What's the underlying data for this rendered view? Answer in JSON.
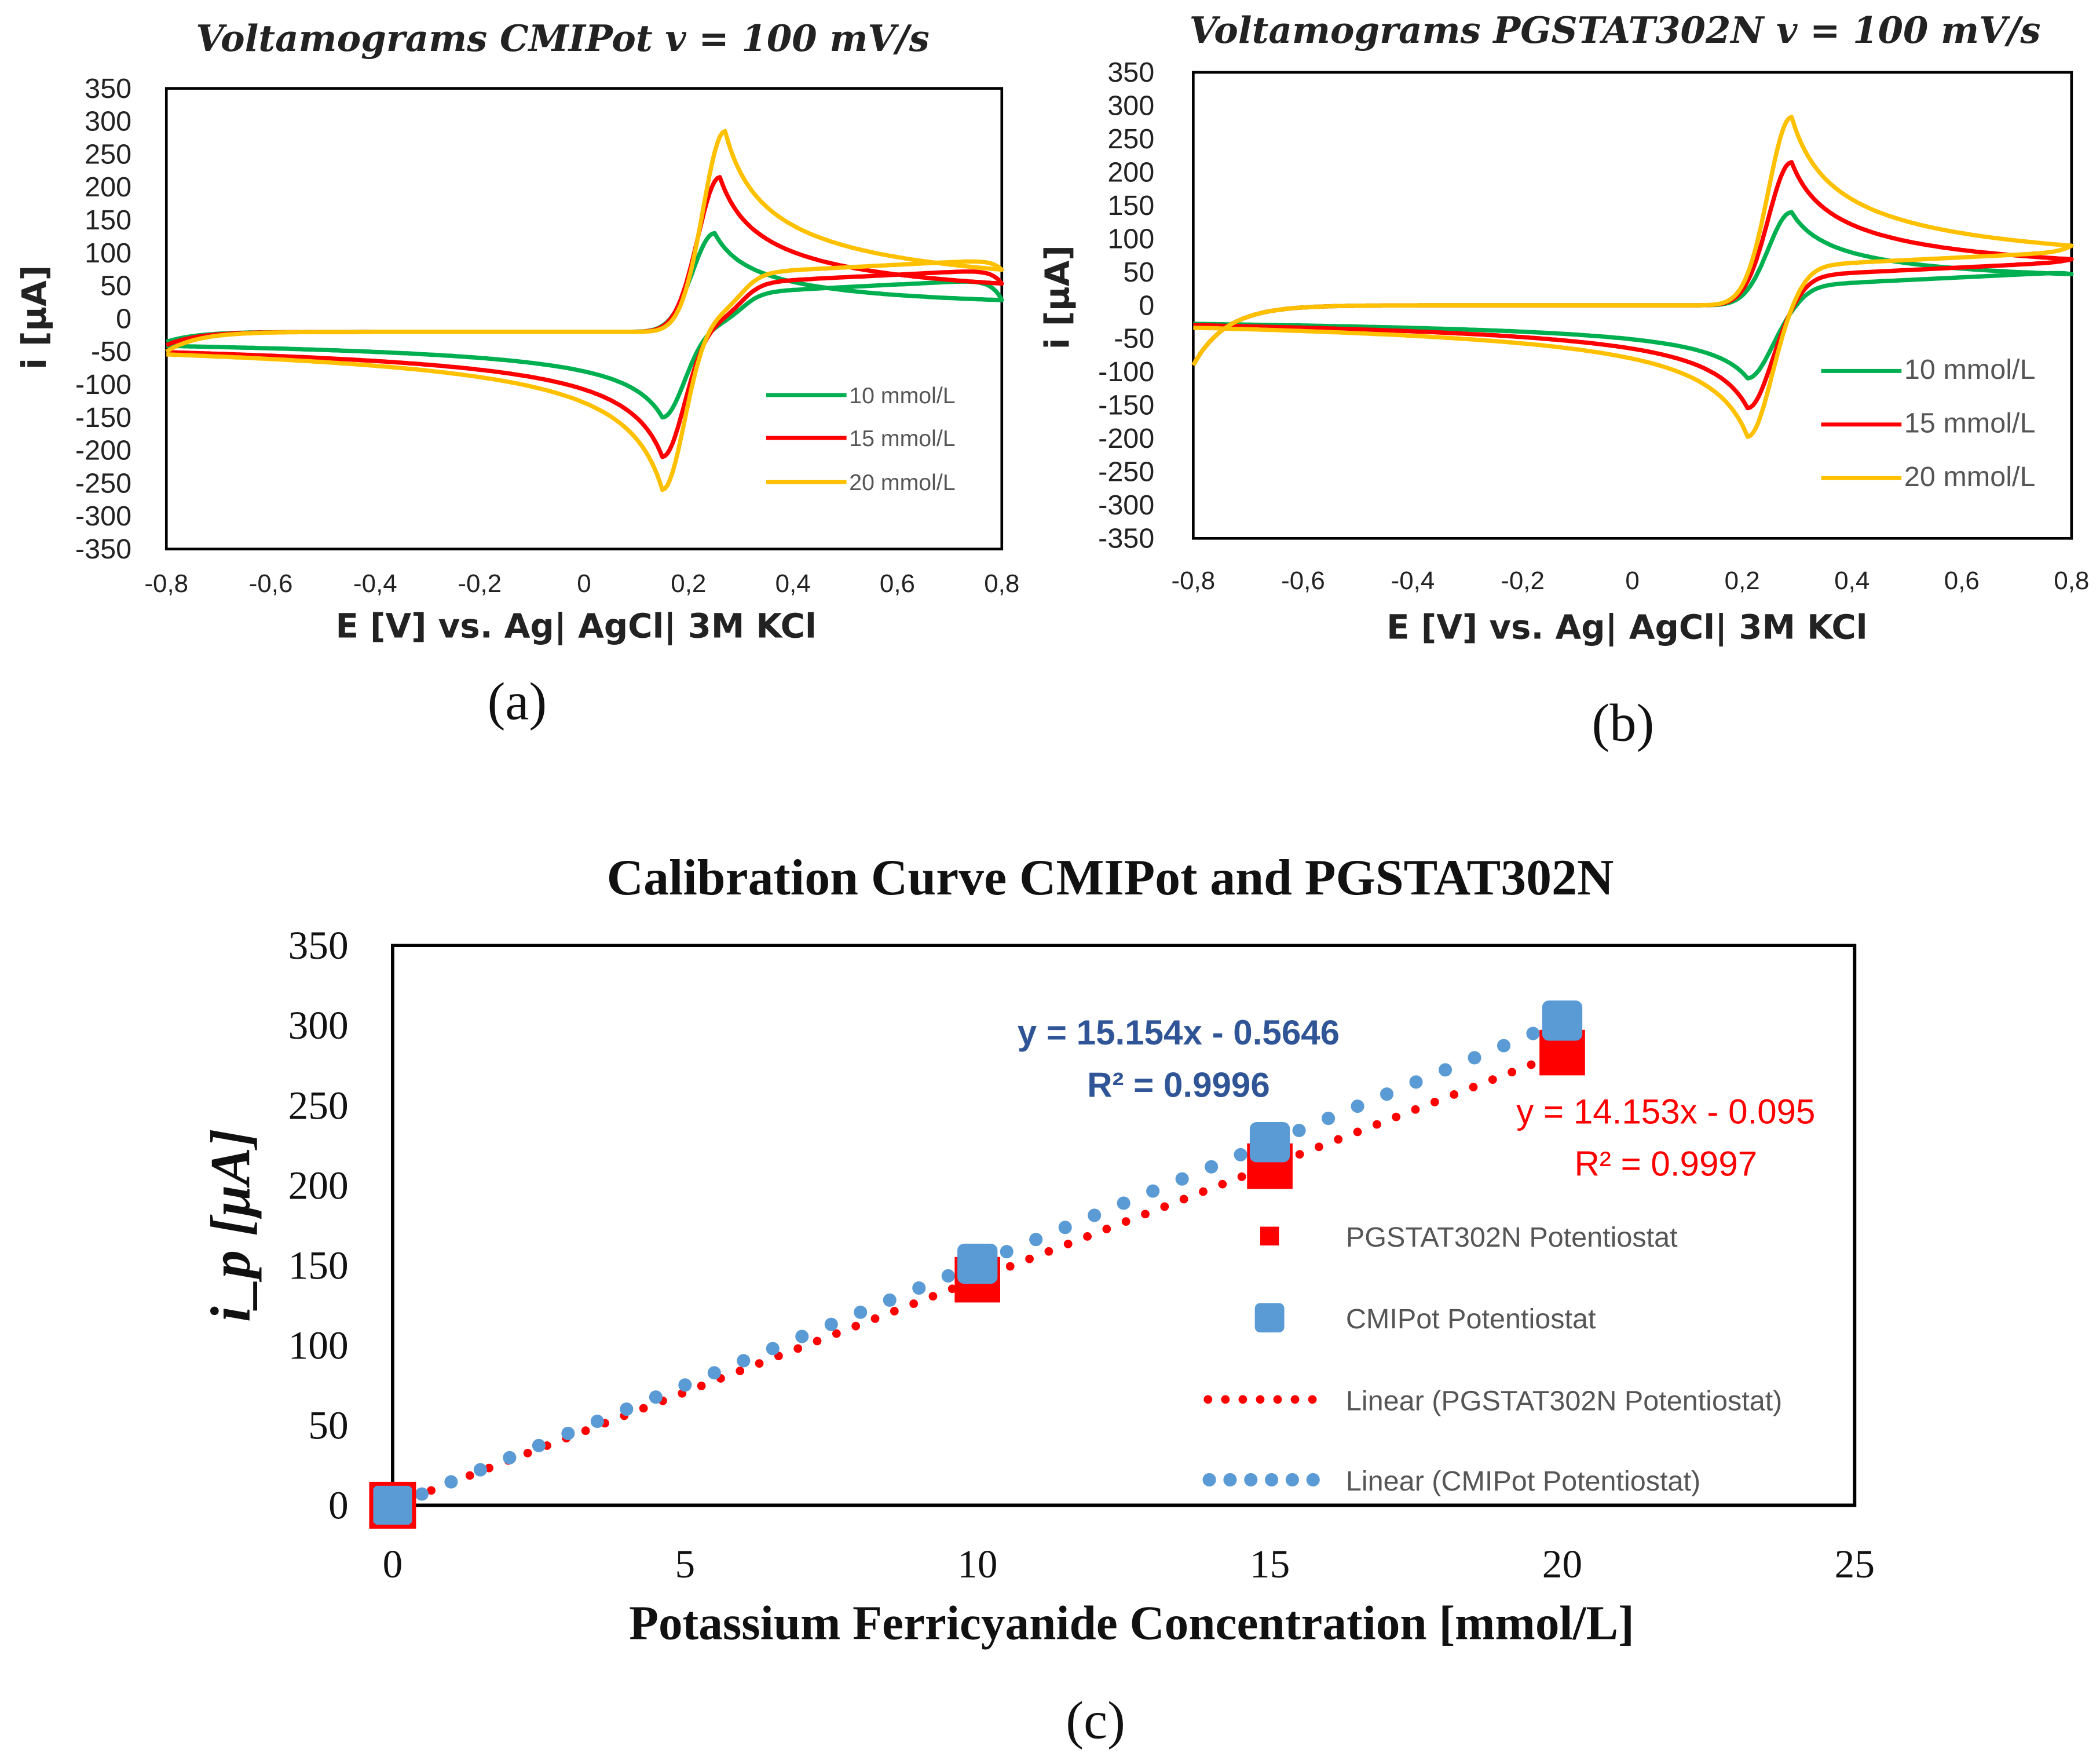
{
  "chart_data": [
    {
      "type": "line",
      "panel": "(a)",
      "title": "Voltamograms CMIPot v = 100 mV/s",
      "xlabel": "E [V] vs. Ag| AgCl| 3M KCl",
      "ylabel": "i [µA]",
      "xlim": [
        -0.8,
        0.8
      ],
      "ylim": [
        -350,
        350
      ],
      "xticks": [
        "-0,8",
        "-0,6",
        "-0,4",
        "-0,2",
        "0",
        "0,2",
        "0,4",
        "0,6",
        "0,8"
      ],
      "yticks": [
        "350",
        "300",
        "250",
        "200",
        "150",
        "100",
        "50",
        "0",
        "-50",
        "-100",
        "-150",
        "-200",
        "-250",
        "-300",
        "-350"
      ],
      "legend_position": "bottom-right",
      "series": [
        {
          "name": "10 mmol/L",
          "color": "#00b050",
          "anodic_peak": [
            0.25,
            150
          ],
          "cathodic_peak": [
            0.15,
            -140
          ],
          "forward_start": -35,
          "forward_baseline": -20,
          "reverse_baseline_high": 40,
          "reverse_baseline_low": -10
        },
        {
          "name": "15 mmol/L",
          "color": "#ff0000",
          "anodic_peak": [
            0.26,
            235
          ],
          "cathodic_peak": [
            0.15,
            -205
          ],
          "forward_start": -40,
          "forward_baseline": -20,
          "reverse_baseline_high": 55,
          "reverse_baseline_low": -5
        },
        {
          "name": "20 mmol/L",
          "color": "#ffc000",
          "anodic_peak": [
            0.27,
            305
          ],
          "cathodic_peak": [
            0.15,
            -265
          ],
          "forward_start": -50,
          "forward_baseline": -20,
          "reverse_baseline_high": 70,
          "reverse_baseline_low": 5
        }
      ]
    },
    {
      "type": "line",
      "panel": "(b)",
      "title": "Voltamograms PGSTAT302N v = 100 mV/s",
      "xlabel": "E [V] vs. Ag| AgCl| 3M KCl",
      "ylabel": "i [µA]",
      "xlim": [
        -0.8,
        0.8
      ],
      "ylim": [
        -350,
        350
      ],
      "xticks": [
        "-0,8",
        "-0,6",
        "-0,4",
        "-0,2",
        "0",
        "0,2",
        "0,4",
        "0,6",
        "0,8"
      ],
      "yticks": [
        "350",
        "300",
        "250",
        "200",
        "150",
        "100",
        "50",
        "0",
        "-50",
        "-100",
        "-150",
        "-200",
        "-250",
        "-300",
        "-350"
      ],
      "legend_position": "bottom-right",
      "series": [
        {
          "name": "10 mmol/L",
          "color": "#00b050",
          "anodic_peak": [
            0.29,
            140
          ],
          "cathodic_peak": [
            0.21,
            -105
          ],
          "forward_start": -90,
          "forward_baseline": 0,
          "reverse_baseline_high": 30,
          "reverse_baseline_low": -5
        },
        {
          "name": "15 mmol/L",
          "color": "#ff0000",
          "anodic_peak": [
            0.29,
            215
          ],
          "cathodic_peak": [
            0.21,
            -160
          ],
          "forward_start": -90,
          "forward_baseline": 0,
          "reverse_baseline_high": 45,
          "reverse_baseline_low": 5
        },
        {
          "name": "20 mmol/L",
          "color": "#ffc000",
          "anodic_peak": [
            0.29,
            283
          ],
          "cathodic_peak": [
            0.21,
            -210
          ],
          "forward_start": -90,
          "forward_baseline": 0,
          "reverse_baseline_high": 60,
          "reverse_baseline_low": 12
        }
      ]
    },
    {
      "type": "scatter",
      "panel": "(c)",
      "title": "Calibration Curve CMIPot and PGSTAT302N",
      "xlabel": "Potassium Ferricyanide Concentration [mmol/L]",
      "ylabel": "i_p [µA]",
      "xlim": [
        0,
        25
      ],
      "ylim": [
        0,
        350
      ],
      "xticks": [
        "0",
        "5",
        "10",
        "15",
        "20",
        "25"
      ],
      "yticks": [
        "350",
        "300",
        "250",
        "200",
        "150",
        "100",
        "50",
        "0"
      ],
      "legend_position": "right",
      "series": [
        {
          "name": "PGSTAT302N Potentiostat",
          "color": "#ff0000",
          "marker": "square",
          "x": [
            0,
            10,
            15,
            20
          ],
          "y": [
            0,
            141,
            212,
            283
          ]
        },
        {
          "name": "CMIPot Potentiostat",
          "color": "#5b9bd5",
          "marker": "rounded-square",
          "x": [
            0,
            10,
            15,
            20
          ],
          "y": [
            0,
            151,
            227,
            303
          ]
        }
      ],
      "trendlines": [
        {
          "name": "Linear (PGSTAT302N Potentiostat)",
          "color": "#ff0000",
          "slope": 14.153,
          "intercept": -0.095,
          "equation": "y = 14.153x - 0.095",
          "r2": "R² = 0.9997"
        },
        {
          "name": "Linear (CMIPot Potentiostat)",
          "color": "#5b9bd5",
          "slope": 15.154,
          "intercept": -0.5646,
          "equation": "y = 15.154x - 0.5646",
          "r2": "R² = 0.9996"
        }
      ]
    }
  ]
}
